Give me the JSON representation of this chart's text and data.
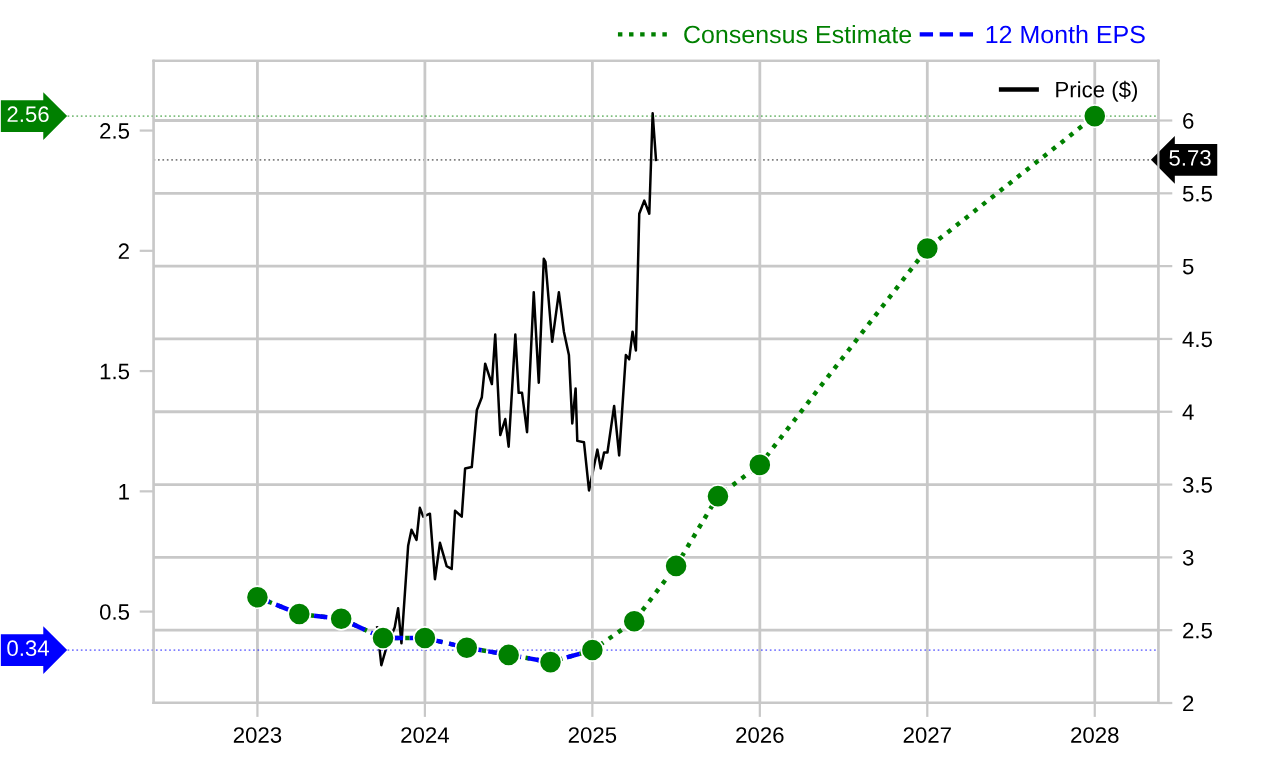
{
  "chart_data": {
    "type": "line",
    "series": [
      {
        "name": "Consensus Estimate",
        "color": "#008000",
        "line_style": "dotted",
        "marker": "circle",
        "x": [
          2023.0,
          2023.25,
          2023.5,
          2023.75,
          2024.0,
          2024.25,
          2024.5,
          2024.75,
          2025.0,
          2025.25,
          2025.5,
          2025.75,
          2026.0,
          2027.0,
          2028.0
        ],
        "values": [
          0.56,
          0.49,
          0.47,
          0.39,
          0.39,
          0.35,
          0.32,
          0.29,
          0.34,
          0.46,
          0.69,
          0.98,
          1.11,
          2.01,
          2.56
        ]
      },
      {
        "name": "12 Month EPS",
        "color": "#0000ff",
        "line_style": "dashed",
        "x": [
          2023.0,
          2023.25,
          2023.5,
          2023.75,
          2024.0,
          2024.25,
          2024.5,
          2024.75,
          2025.0
        ],
        "values": [
          0.56,
          0.49,
          0.47,
          0.39,
          0.39,
          0.35,
          0.32,
          0.29,
          0.34
        ]
      },
      {
        "name": "Price ($)",
        "color": "#000000",
        "axis": "y2",
        "line_style": "solid",
        "x": [
          2023.715,
          2023.74,
          2023.77,
          2023.82,
          2023.84,
          2023.86,
          2023.9,
          2023.92,
          2023.95,
          2023.97,
          2023.99,
          2024.03,
          2024.06,
          2024.09,
          2024.13,
          2024.16,
          2024.18,
          2024.22,
          2024.24,
          2024.28,
          2024.31,
          2024.34,
          2024.36,
          2024.4,
          2024.42,
          2024.45,
          2024.48,
          2024.5,
          2024.54,
          2024.56,
          2024.58,
          2024.61,
          2024.65,
          2024.68,
          2024.71,
          2024.72,
          2024.76,
          2024.8,
          2024.83,
          2024.86,
          2024.88,
          2024.9,
          2024.91,
          2024.95,
          2024.98,
          2025.03,
          2025.05,
          2025.07,
          2025.09,
          2025.13,
          2025.16,
          2025.2,
          2025.22,
          2025.24,
          2025.26,
          2025.28,
          2025.31,
          2025.34,
          2025.36,
          2025.38
        ],
        "values": [
          2.52,
          2.26,
          2.38,
          2.52,
          2.65,
          2.41,
          3.08,
          3.19,
          3.12,
          3.34,
          3.28,
          3.3,
          2.85,
          3.1,
          2.94,
          2.92,
          3.32,
          3.28,
          3.61,
          3.62,
          4.01,
          4.1,
          4.33,
          4.19,
          4.53,
          3.84,
          3.95,
          3.76,
          4.53,
          4.13,
          4.13,
          3.86,
          4.82,
          4.2,
          5.05,
          5.03,
          4.48,
          4.82,
          4.55,
          4.39,
          3.92,
          4.16,
          3.8,
          3.79,
          3.46,
          3.74,
          3.61,
          3.72,
          3.72,
          4.04,
          3.7,
          4.39,
          4.36,
          4.55,
          4.42,
          5.36,
          5.45,
          5.36,
          6.05,
          5.73
        ]
      }
    ],
    "xlim": [
      2022.38,
      2028.38
    ],
    "xticks": [
      2023,
      2024,
      2025,
      2026,
      2027,
      2028
    ],
    "ylim": [
      0.12,
      2.79
    ],
    "yticks": [
      0.5,
      1,
      1.5,
      2,
      2.5
    ],
    "y2lim": [
      2,
      6.41
    ],
    "y2ticks": [
      2,
      2.5,
      3,
      3.5,
      4,
      4.5,
      5,
      5.5,
      6
    ],
    "grid": true,
    "legend": "top right",
    "ref_lines": [
      {
        "axis": "y",
        "value": 2.56,
        "label": "2.56",
        "color": "#008000",
        "line_style": "dotted"
      },
      {
        "axis": "y",
        "value": 0.34,
        "label": "0.34",
        "color": "#0000ff",
        "line_style": "dotted"
      },
      {
        "axis": "y2",
        "value": 5.73,
        "label": "5.73",
        "color": "#000000",
        "line_style": "dotted"
      }
    ]
  }
}
